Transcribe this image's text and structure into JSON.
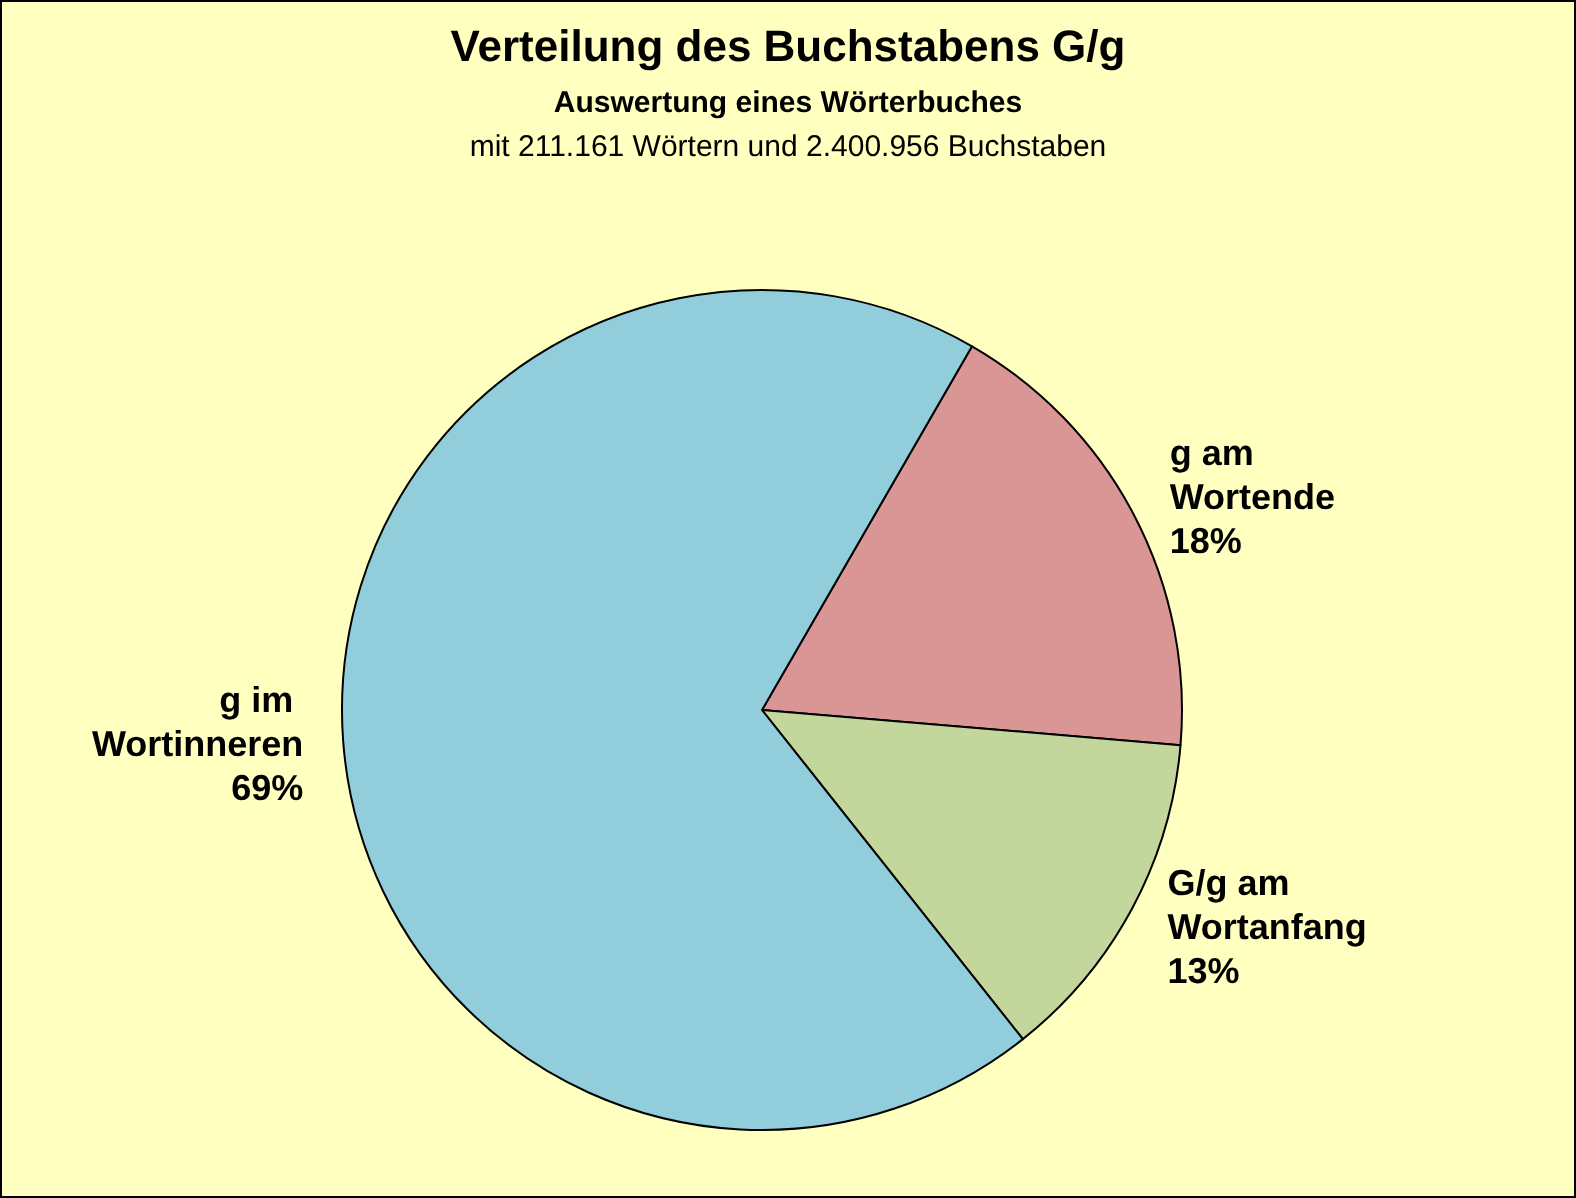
{
  "chart_data": {
    "type": "pie",
    "title": "Verteilung des Buchstabens G/g",
    "subtitle": "Auswertung eines Wörterbuches",
    "annotations": [
      "mit 211.161 Wörtern und 2.400.956 Buchstaben"
    ],
    "categories": [
      "g am Wortende",
      "G/g am Wortanfang",
      "g im Wortinneren"
    ],
    "values": [
      18,
      13,
      69
    ],
    "value_labels": [
      "18%",
      "13%",
      "69%"
    ],
    "colors": [
      "#d99694",
      "#c3d69b",
      "#92cddc"
    ],
    "legend": false
  }
}
